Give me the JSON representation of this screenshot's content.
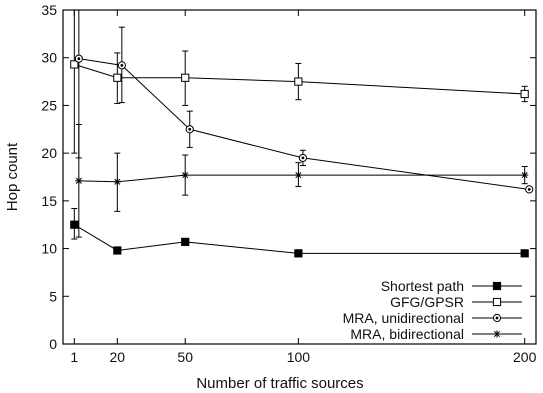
{
  "chart_data": {
    "type": "line",
    "xlabel": "Number of traffic sources",
    "ylabel": "Hop count",
    "xlim": [
      -4,
      205
    ],
    "ylim": [
      0,
      35
    ],
    "xticks": [
      1,
      20,
      50,
      100,
      200
    ],
    "yticks": [
      0,
      5,
      10,
      15,
      20,
      25,
      30,
      35
    ],
    "grid": false,
    "legend_position": "bottom-right",
    "series": [
      {
        "name": "Shortest path",
        "marker": "filled-square",
        "points": [
          {
            "x": 1,
            "y": 12.5,
            "err": [
              11.0,
              14.2
            ]
          },
          {
            "x": 20,
            "y": 9.8
          },
          {
            "x": 50,
            "y": 10.7
          },
          {
            "x": 100,
            "y": 9.5
          },
          {
            "x": 200,
            "y": 9.5
          }
        ]
      },
      {
        "name": "GFG/GPSR",
        "marker": "open-square",
        "points": [
          {
            "x": 1,
            "y": 29.3,
            "err": [
              20.0,
              35.0
            ]
          },
          {
            "x": 20,
            "y": 27.9,
            "err": [
              25.2,
              30.5
            ]
          },
          {
            "x": 50,
            "y": 27.9,
            "err": [
              25.0,
              30.7
            ]
          },
          {
            "x": 100,
            "y": 27.5,
            "err": [
              25.6,
              29.4
            ]
          },
          {
            "x": 200,
            "y": 26.2,
            "err": [
              25.4,
              27.0
            ]
          }
        ]
      },
      {
        "name": "MRA, unidirectional",
        "marker": "open-circle",
        "points": [
          {
            "x": 3,
            "y": 29.9,
            "err": [
              19.5,
              35.0
            ]
          },
          {
            "x": 22,
            "y": 29.2,
            "err": [
              25.3,
              33.2
            ]
          },
          {
            "x": 52,
            "y": 22.5,
            "err": [
              20.6,
              24.4
            ]
          },
          {
            "x": 102,
            "y": 19.5,
            "err": [
              18.7,
              20.3
            ]
          },
          {
            "x": 202,
            "y": 16.2
          }
        ]
      },
      {
        "name": "MRA, bidirectional",
        "marker": "star",
        "points": [
          {
            "x": 3,
            "y": 17.1,
            "err": [
              11.2,
              23.0
            ]
          },
          {
            "x": 20,
            "y": 17.0,
            "err": [
              13.9,
              20.0
            ]
          },
          {
            "x": 50,
            "y": 17.7,
            "err": [
              15.6,
              19.8
            ]
          },
          {
            "x": 100,
            "y": 17.7,
            "err": [
              16.5,
              19.0
            ]
          },
          {
            "x": 200,
            "y": 17.7,
            "err": [
              16.8,
              18.6
            ]
          }
        ]
      }
    ]
  }
}
